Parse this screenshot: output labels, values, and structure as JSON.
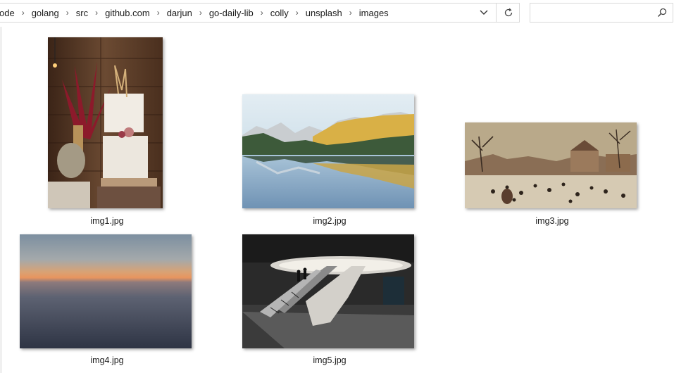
{
  "address_bar": {
    "crumbs": [
      "ode",
      "golang",
      "src",
      "github.com",
      "darjun",
      "go-daily-lib",
      "colly",
      "unsplash",
      "images"
    ],
    "dropdown_icon": "chevron-down-icon",
    "refresh_icon": "refresh-icon"
  },
  "search": {
    "value": "",
    "placeholder": "",
    "icon": "search-icon"
  },
  "files": [
    {
      "name": "img1.jpg"
    },
    {
      "name": "img2.jpg"
    },
    {
      "name": "img3.jpg"
    },
    {
      "name": "img4.jpg"
    },
    {
      "name": "img5.jpg"
    }
  ]
}
